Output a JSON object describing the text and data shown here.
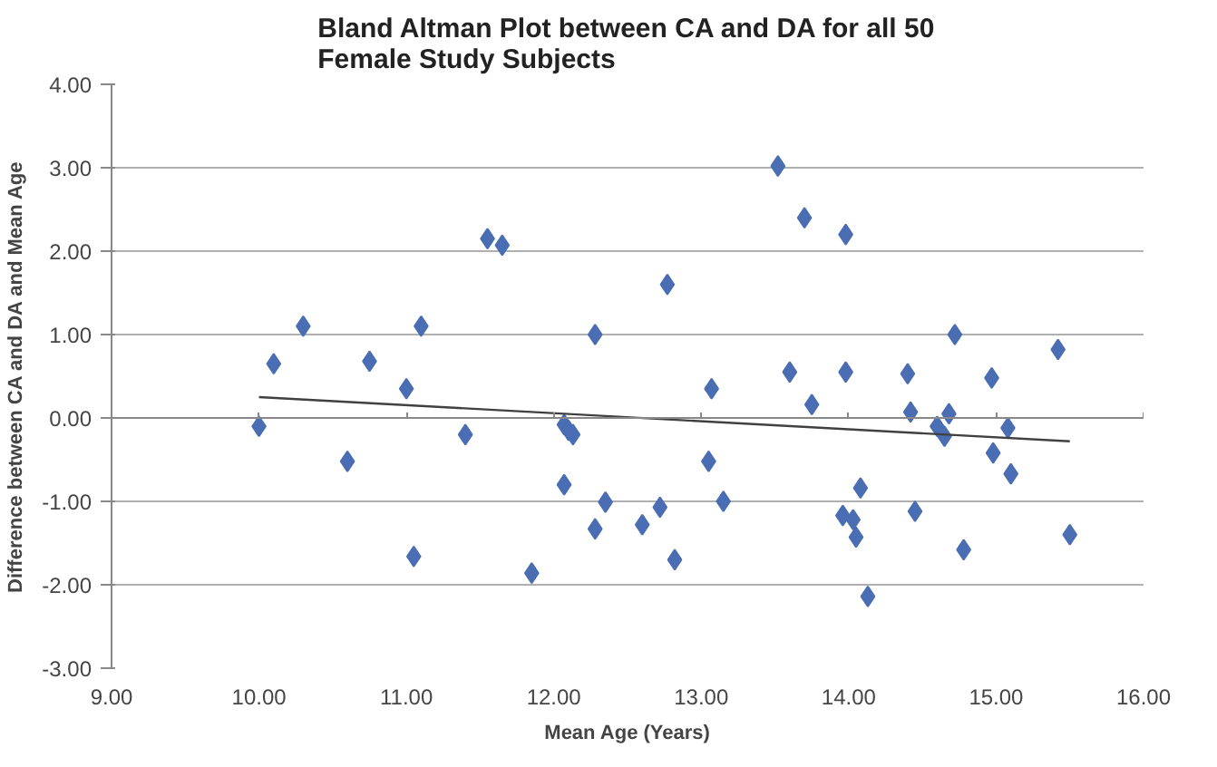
{
  "chart_data": {
    "type": "scatter",
    "title": "Bland Altman Plot between CA and DA for all 50 Female Study Subjects",
    "xlabel": "Mean Age (Years)",
    "ylabel": "Difference between CA and DA and Mean Age",
    "xlim": [
      9,
      16
    ],
    "ylim": [
      -3,
      4
    ],
    "xticks": [
      {
        "value": 9,
        "label": "9.00"
      },
      {
        "value": 10,
        "label": "10.00"
      },
      {
        "value": 11,
        "label": "11.00"
      },
      {
        "value": 12,
        "label": "12.00"
      },
      {
        "value": 13,
        "label": "13.00"
      },
      {
        "value": 14,
        "label": "14.00"
      },
      {
        "value": 15,
        "label": "15.00"
      },
      {
        "value": 16,
        "label": "16.00"
      }
    ],
    "yticks": [
      {
        "value": -3,
        "label": "-3.00"
      },
      {
        "value": -2,
        "label": "-2.00"
      },
      {
        "value": -1,
        "label": "-1.00"
      },
      {
        "value": 0,
        "label": "0.00"
      },
      {
        "value": 1,
        "label": "1.00"
      },
      {
        "value": 2,
        "label": "2.00"
      },
      {
        "value": 3,
        "label": "3.00"
      },
      {
        "value": 4,
        "label": "4.00"
      }
    ],
    "grid": "y",
    "series": [
      {
        "marker": "diamond",
        "color": "#4a6db3",
        "x": [
          10.0,
          10.1,
          10.3,
          10.6,
          10.75,
          11.0,
          11.05,
          11.1,
          11.4,
          11.55,
          11.65,
          11.85,
          12.07,
          12.1,
          12.13,
          12.07,
          12.28,
          12.28,
          12.35,
          12.6,
          12.72,
          12.77,
          12.82,
          13.05,
          13.07,
          13.15,
          13.52,
          13.6,
          13.7,
          13.75,
          13.98,
          13.98,
          13.96,
          14.03,
          14.05,
          14.08,
          14.13,
          14.4,
          14.42,
          14.45,
          14.6,
          14.65,
          14.68,
          14.72,
          14.78,
          14.97,
          14.98,
          15.08,
          15.1,
          15.42,
          15.5
        ],
        "values": [
          -0.1,
          0.65,
          1.1,
          -0.52,
          0.68,
          0.35,
          -1.66,
          1.1,
          -0.2,
          2.15,
          2.07,
          -1.86,
          -0.08,
          -0.15,
          -0.2,
          -0.8,
          1.0,
          -1.33,
          -1.01,
          -1.28,
          -1.07,
          1.6,
          -1.7,
          -0.52,
          0.35,
          -1.0,
          3.02,
          0.55,
          2.4,
          0.16,
          2.2,
          0.55,
          -1.17,
          -1.22,
          -1.43,
          -0.84,
          -2.14,
          0.53,
          0.07,
          -1.12,
          -0.1,
          -0.22,
          0.05,
          1.0,
          -1.58,
          0.48,
          -0.42,
          -0.12,
          -0.67,
          0.82,
          -1.4
        ]
      },
      {
        "type": "line",
        "color": "#404040",
        "x": [
          10.0,
          15.5
        ],
        "values": [
          0.25,
          -0.28
        ]
      }
    ]
  }
}
